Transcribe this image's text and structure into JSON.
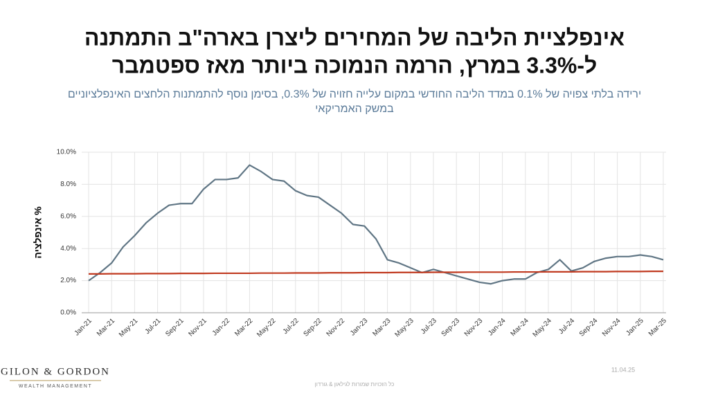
{
  "chart_data": {
    "type": "line",
    "title_lines": [
      "אינפלציית הליבה של המחירים ליצרן בארה\"ב התמתנה",
      "ל-3.3% במרץ, הרמה הנמוכה ביותר מאז ספטמבר"
    ],
    "subtitle_lines": [
      "ירידה בלתי צפויה של 0.1% במדד הליבה החודשי במקום עלייה חזויה של 0.3%, בסימן נוסף להתמתנות הלחצים האינפלציוניים",
      "במשק האמריקאי"
    ],
    "y_label": "% אינפלציה",
    "categories": [
      "Jan-21",
      null,
      "Mar-21",
      null,
      "May-21",
      null,
      "Jul-21",
      null,
      "Sep-21",
      null,
      "Nov-21",
      null,
      "Jan-22",
      null,
      "Mar-22",
      null,
      "May-22",
      null,
      "Jul-22",
      null,
      "Sep-22",
      null,
      "Nov-22",
      null,
      "Jan-23",
      null,
      "Mar-23",
      null,
      "May-23",
      null,
      "Jul-23",
      null,
      "Sep-23",
      null,
      "Nov-23",
      null,
      "Jan-24",
      null,
      "Mar-24",
      null,
      "May-24",
      null,
      "Jul-24",
      null,
      "Sep-24",
      null,
      "Nov-24",
      null,
      "Jan-25",
      null,
      "Mar-25"
    ],
    "series": [
      {
        "color": "#5f7584",
        "values": [
          2.0,
          2.5,
          3.1,
          4.1,
          4.8,
          5.6,
          6.2,
          6.7,
          6.8,
          6.8,
          7.7,
          8.3,
          8.3,
          8.4,
          9.2,
          8.8,
          8.3,
          8.2,
          7.6,
          7.3,
          7.2,
          6.7,
          6.2,
          5.5,
          5.4,
          4.6,
          3.3,
          3.1,
          2.8,
          2.5,
          2.7,
          2.5,
          2.3,
          2.1,
          1.9,
          1.8,
          2.0,
          2.1,
          2.1,
          2.5,
          2.7,
          3.3,
          2.6,
          2.8,
          3.2,
          3.4,
          3.5,
          3.5,
          3.6,
          3.5,
          3.3
        ]
      },
      {
        "color": "#c0391f",
        "values": [
          2.42,
          2.42,
          2.43,
          2.43,
          2.43,
          2.44,
          2.44,
          2.44,
          2.45,
          2.45,
          2.45,
          2.46,
          2.46,
          2.46,
          2.46,
          2.47,
          2.47,
          2.47,
          2.48,
          2.48,
          2.48,
          2.49,
          2.49,
          2.49,
          2.5,
          2.5,
          2.5,
          2.51,
          2.51,
          2.51,
          2.52,
          2.52,
          2.52,
          2.53,
          2.53,
          2.53,
          2.53,
          2.54,
          2.54,
          2.54,
          2.55,
          2.55,
          2.55,
          2.56,
          2.56,
          2.56,
          2.57,
          2.57,
          2.57,
          2.58,
          2.58
        ]
      }
    ],
    "ylim": [
      0,
      10
    ],
    "yticks": [
      {
        "value": 0,
        "label": "0.0%"
      },
      {
        "value": 2,
        "label": "2.0%"
      },
      {
        "value": 4,
        "label": "4.0%"
      },
      {
        "value": 6,
        "label": "6.0%"
      },
      {
        "value": 8,
        "label": "8.0%"
      },
      {
        "value": 10,
        "label": "10.0%"
      }
    ],
    "grid": true,
    "logo": {
      "name": "GILON & GORDON",
      "tagline": "WEALTH MANAGEMENT"
    },
    "date": "11.04.25",
    "footer": "כל הזכויות שמורות לגילאון & גורדון"
  }
}
